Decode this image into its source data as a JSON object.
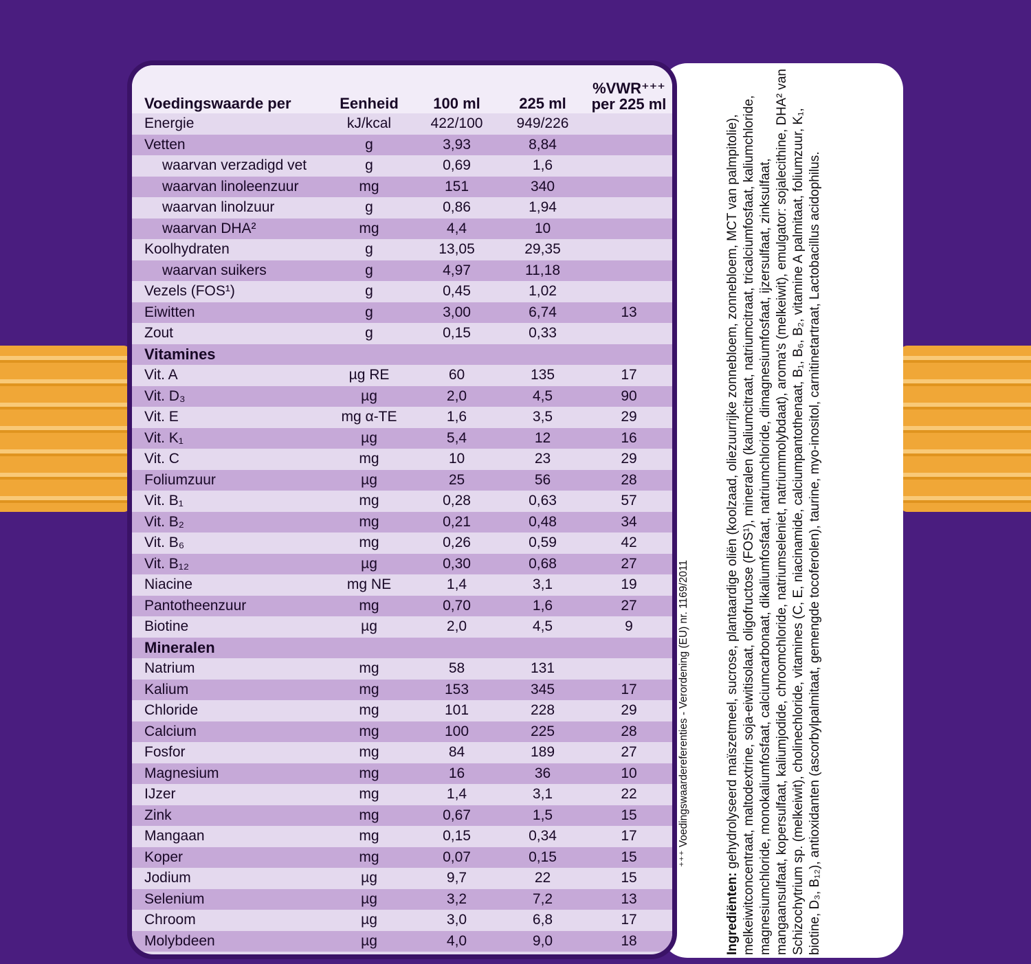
{
  "colors": {
    "background": "#4a1d7f",
    "panel_border": "#3a1266",
    "row_dark": "#c6a9d8",
    "row_light": "#e4d9ee",
    "header_bg": "#f2ecf8",
    "text": "#180826",
    "orange": "#f0a737",
    "white_panel": "#ffffff"
  },
  "table": {
    "header": {
      "nutrition": "Voedingswaarde per",
      "unit": "Eenheid",
      "per100": "100 ml",
      "per225": "225 ml",
      "vwr_line1": "%VWR⁺⁺⁺",
      "vwr_line2": "per 225 ml"
    },
    "rows": [
      {
        "type": "data",
        "label": "Energie",
        "unit": "kJ/kcal",
        "v100": "422/100",
        "v225": "949/226",
        "vwr": "",
        "indent": false
      },
      {
        "type": "data",
        "label": "Vetten",
        "unit": "g",
        "v100": "3,93",
        "v225": "8,84",
        "vwr": "",
        "indent": false
      },
      {
        "type": "data",
        "label": "waarvan verzadigd vet",
        "unit": "g",
        "v100": "0,69",
        "v225": "1,6",
        "vwr": "",
        "indent": true
      },
      {
        "type": "data",
        "label": "waarvan linoleenzuur",
        "unit": "mg",
        "v100": "151",
        "v225": "340",
        "vwr": "",
        "indent": true
      },
      {
        "type": "data",
        "label": "waarvan linolzuur",
        "unit": "g",
        "v100": "0,86",
        "v225": "1,94",
        "vwr": "",
        "indent": true
      },
      {
        "type": "data",
        "label": "waarvan DHA²",
        "unit": "mg",
        "v100": "4,4",
        "v225": "10",
        "vwr": "",
        "indent": true
      },
      {
        "type": "data",
        "label": "Koolhydraten",
        "unit": "g",
        "v100": "13,05",
        "v225": "29,35",
        "vwr": "",
        "indent": false
      },
      {
        "type": "data",
        "label": "waarvan suikers",
        "unit": "g",
        "v100": "4,97",
        "v225": "11,18",
        "vwr": "",
        "indent": true
      },
      {
        "type": "data",
        "label": "Vezels (FOS¹)",
        "unit": "g",
        "v100": "0,45",
        "v225": "1,02",
        "vwr": "",
        "indent": false
      },
      {
        "type": "data",
        "label": "Eiwitten",
        "unit": "g",
        "v100": "3,00",
        "v225": "6,74",
        "vwr": "13",
        "indent": false
      },
      {
        "type": "data",
        "label": "Zout",
        "unit": "g",
        "v100": "0,15",
        "v225": "0,33",
        "vwr": "",
        "indent": false
      },
      {
        "type": "section",
        "label": "Vitamines"
      },
      {
        "type": "data",
        "label": "Vit. A",
        "unit": "µg RE",
        "v100": "60",
        "v225": "135",
        "vwr": "17",
        "indent": false
      },
      {
        "type": "data",
        "label": "Vit. D₃",
        "unit": "µg",
        "v100": "2,0",
        "v225": "4,5",
        "vwr": "90",
        "indent": false
      },
      {
        "type": "data",
        "label": "Vit. E",
        "unit": "mg α-TE",
        "v100": "1,6",
        "v225": "3,5",
        "vwr": "29",
        "indent": false
      },
      {
        "type": "data",
        "label": "Vit. K₁",
        "unit": "µg",
        "v100": "5,4",
        "v225": "12",
        "vwr": "16",
        "indent": false
      },
      {
        "type": "data",
        "label": "Vit. C",
        "unit": "mg",
        "v100": "10",
        "v225": "23",
        "vwr": "29",
        "indent": false
      },
      {
        "type": "data",
        "label": "Foliumzuur",
        "unit": "µg",
        "v100": "25",
        "v225": "56",
        "vwr": "28",
        "indent": false
      },
      {
        "type": "data",
        "label": "Vit. B₁",
        "unit": "mg",
        "v100": "0,28",
        "v225": "0,63",
        "vwr": "57",
        "indent": false
      },
      {
        "type": "data",
        "label": "Vit. B₂",
        "unit": "mg",
        "v100": "0,21",
        "v225": "0,48",
        "vwr": "34",
        "indent": false
      },
      {
        "type": "data",
        "label": "Vit. B₆",
        "unit": "mg",
        "v100": "0,26",
        "v225": "0,59",
        "vwr": "42",
        "indent": false
      },
      {
        "type": "data",
        "label": "Vit. B₁₂",
        "unit": "µg",
        "v100": "0,30",
        "v225": "0,68",
        "vwr": "27",
        "indent": false
      },
      {
        "type": "data",
        "label": "Niacine",
        "unit": "mg NE",
        "v100": "1,4",
        "v225": "3,1",
        "vwr": "19",
        "indent": false
      },
      {
        "type": "data",
        "label": "Pantotheenzuur",
        "unit": "mg",
        "v100": "0,70",
        "v225": "1,6",
        "vwr": "27",
        "indent": false
      },
      {
        "type": "data",
        "label": "Biotine",
        "unit": "µg",
        "v100": "2,0",
        "v225": "4,5",
        "vwr": "9",
        "indent": false
      },
      {
        "type": "section",
        "label": "Mineralen"
      },
      {
        "type": "data",
        "label": "Natrium",
        "unit": "mg",
        "v100": "58",
        "v225": "131",
        "vwr": "",
        "indent": false
      },
      {
        "type": "data",
        "label": "Kalium",
        "unit": "mg",
        "v100": "153",
        "v225": "345",
        "vwr": "17",
        "indent": false
      },
      {
        "type": "data",
        "label": "Chloride",
        "unit": "mg",
        "v100": "101",
        "v225": "228",
        "vwr": "29",
        "indent": false
      },
      {
        "type": "data",
        "label": "Calcium",
        "unit": "mg",
        "v100": "100",
        "v225": "225",
        "vwr": "28",
        "indent": false
      },
      {
        "type": "data",
        "label": "Fosfor",
        "unit": "mg",
        "v100": "84",
        "v225": "189",
        "vwr": "27",
        "indent": false
      },
      {
        "type": "data",
        "label": "Magnesium",
        "unit": "mg",
        "v100": "16",
        "v225": "36",
        "vwr": "10",
        "indent": false
      },
      {
        "type": "data",
        "label": "IJzer",
        "unit": "mg",
        "v100": "1,4",
        "v225": "3,1",
        "vwr": "22",
        "indent": false
      },
      {
        "type": "data",
        "label": "Zink",
        "unit": "mg",
        "v100": "0,67",
        "v225": "1,5",
        "vwr": "15",
        "indent": false
      },
      {
        "type": "data",
        "label": "Mangaan",
        "unit": "mg",
        "v100": "0,15",
        "v225": "0,34",
        "vwr": "17",
        "indent": false
      },
      {
        "type": "data",
        "label": "Koper",
        "unit": "mg",
        "v100": "0,07",
        "v225": "0,15",
        "vwr": "15",
        "indent": false
      },
      {
        "type": "data",
        "label": "Jodium",
        "unit": "µg",
        "v100": "9,7",
        "v225": "22",
        "vwr": "15",
        "indent": false
      },
      {
        "type": "data",
        "label": "Selenium",
        "unit": "µg",
        "v100": "3,2",
        "v225": "7,2",
        "vwr": "13",
        "indent": false
      },
      {
        "type": "data",
        "label": "Chroom",
        "unit": "µg",
        "v100": "3,0",
        "v225": "6,8",
        "vwr": "17",
        "indent": false
      },
      {
        "type": "data",
        "label": "Molybdeen",
        "unit": "µg",
        "v100": "4,0",
        "v225": "9,0",
        "vwr": "18",
        "indent": false
      }
    ]
  },
  "sidebar": {
    "reference": "⁺⁺⁺ Voedingswaardereferenties - Verordening (EU) nr. 1169/2011",
    "ingredients_label": "Ingrediënten:",
    "ingredients_text": " gehydrolyseerd maïszetmeel, sucrose, plantaardige oliën (koolzaad, oliezuurrijke zonnebloem, zonnebloem, MCT van palmpitolie), melkeiwitconcentraat, maltodextrine, soja-eiwitisolaat, oligofructose (FOS¹), mineralen (kaliumcitraat, natriumcitraat, tricalciumfosfaat, kaliumchloride, magnesiumchloride, monokaliumfosfaat, calciumcarbonaat, dikaliumfosfaat, natriumchloride, dimagnesiumfosfaat, ijzersulfaat, zinksulfaat, mangaansulfaat, kopersulfaat, kaliumjodide, chroomchloride, natriumseleniet, natriummolybdaat), aroma's (melkeiwit), emulgator: sojalecithine, DHA² van Schizochytrium sp. (melkeiwit), cholinechloride, vitamines (C, E, niacinamide, calciumpantothenaat, B₁, B₆, B₂, vitamine A palmitaat, foliumzuur, K₁, biotine, D₃, B₁₂), antioxidanten (ascorbylpalmitaat, gemengde tocoferolen), taurine, myo-inositol, carnitinetartraat, Lactobacillus acidophilus."
  }
}
